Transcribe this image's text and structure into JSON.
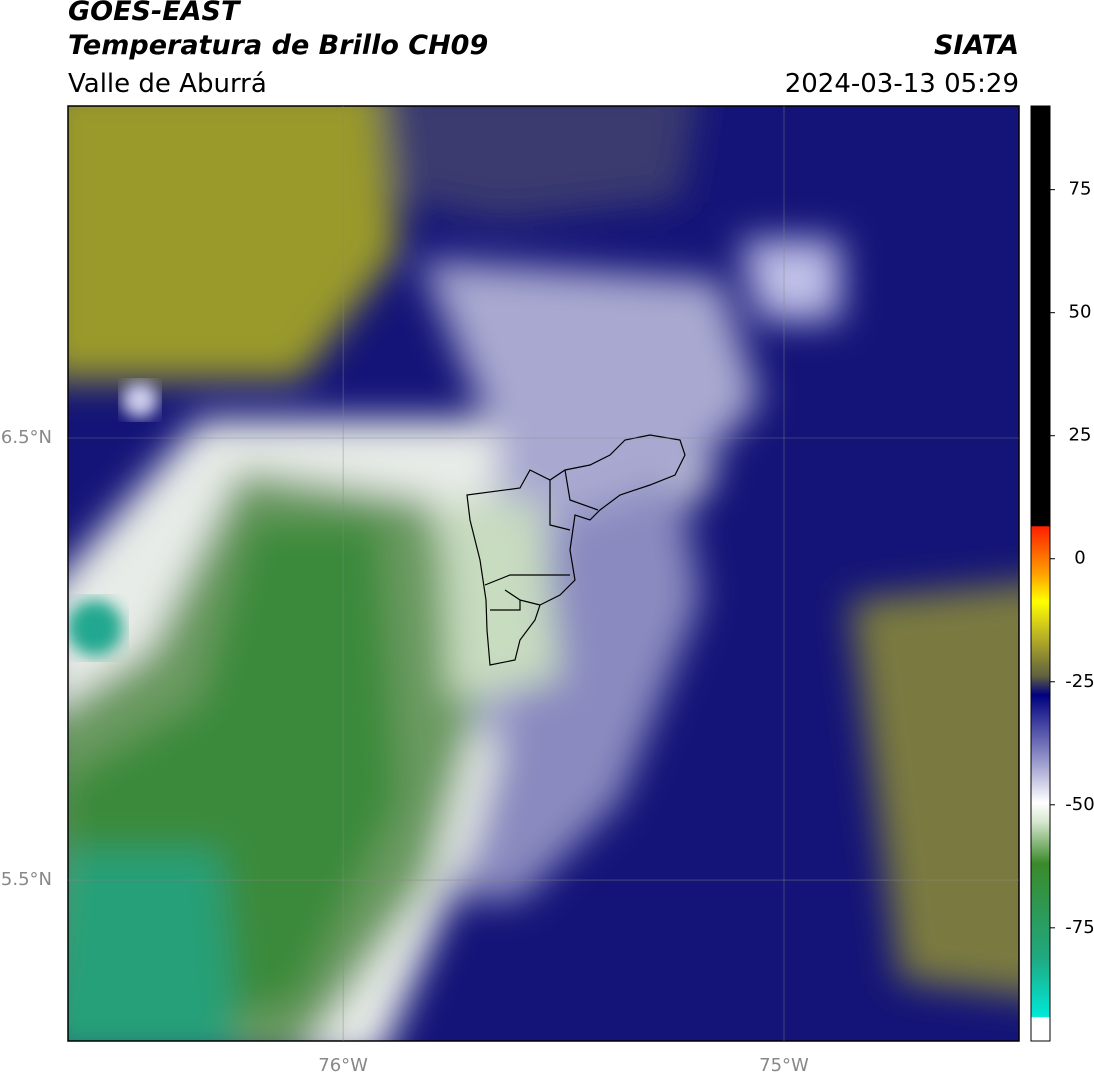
{
  "header": {
    "satellite": "GOES-EAST",
    "title": "Temperatura de Brillo CH09",
    "region": "Valle de Aburrá",
    "source": "SIATA",
    "datetime": "2024-03-13 05:29"
  },
  "map": {
    "lon_lim": [
      -76.624,
      -74.467
    ],
    "lat_lim": [
      5.136,
      7.251
    ],
    "lon_ticks": [
      {
        "value": -76,
        "label": "76°W"
      },
      {
        "value": -75,
        "label": "75°W"
      }
    ],
    "lat_ticks": [
      {
        "value": 6.5,
        "label": "6.5°N"
      },
      {
        "value": 5.5,
        "label": "5.5°N"
      }
    ]
  },
  "colorbar": {
    "lim": [
      -98,
      92
    ],
    "ticks": [
      75,
      50,
      25,
      0,
      -25,
      -50,
      -75
    ]
  }
}
